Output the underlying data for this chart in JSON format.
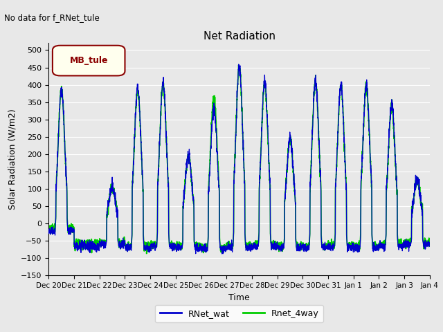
{
  "title": "Net Radiation",
  "xlabel": "Time",
  "ylabel": "Solar Radiation (W/m2)",
  "ylim": [
    -150,
    520
  ],
  "yticks": [
    -150,
    -100,
    -50,
    0,
    50,
    100,
    150,
    200,
    250,
    300,
    350,
    400,
    450,
    500
  ],
  "no_data_text": "No data for f_RNet_tule",
  "legend_box_text": "MB_tule",
  "legend_box_color": "#8B0000",
  "legend_box_bg": "#FFFFEE",
  "line1_color": "#0000CC",
  "line1_label": "RNet_wat",
  "line2_color": "#00CC00",
  "line2_label": "Rnet_4way",
  "bg_color": "#E8E8E8",
  "plot_bg_color": "#E8E8E8",
  "grid_color": "#FFFFFF",
  "figwidth": 6.4,
  "figheight": 4.8,
  "dpi": 100
}
